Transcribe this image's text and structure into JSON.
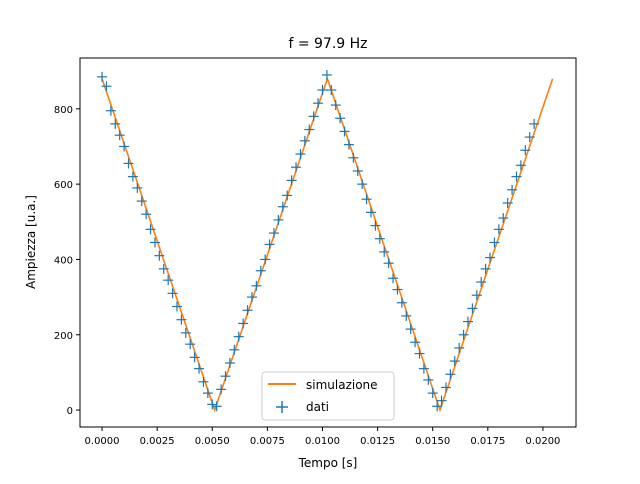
{
  "chart_data": {
    "type": "line",
    "title": "f = 97.9 Hz",
    "xlabel": "Tempo [s]",
    "ylabel": "Ampiezza [u.a.]",
    "xlim": [
      -0.001,
      0.0215
    ],
    "ylim": [
      -45,
      935
    ],
    "xticks": [
      0.0,
      0.0025,
      0.005,
      0.0075,
      0.01,
      0.0125,
      0.015,
      0.0175,
      0.02
    ],
    "xtick_labels": [
      "0.0000",
      "0.0025",
      "0.0050",
      "0.0075",
      "0.0100",
      "0.0125",
      "0.0150",
      "0.0175",
      "0.0200"
    ],
    "yticks": [
      0,
      200,
      400,
      600,
      800
    ],
    "ytick_labels": [
      "0",
      "200",
      "400",
      "600",
      "800"
    ],
    "grid": false,
    "legend_position": "lower-center",
    "series": [
      {
        "name": "simulazione",
        "kind": "line",
        "color": "#ff7f0e",
        "x": [
          0.0,
          0.00511,
          0.01022,
          0.01533,
          0.02044
        ],
        "y": [
          880,
          0,
          880,
          0,
          880
        ]
      },
      {
        "name": "dati",
        "kind": "scatter",
        "marker": "+",
        "color": "#1f77b4",
        "x": [
          0.0,
          0.0002,
          0.0004,
          0.0006,
          0.0008,
          0.001,
          0.0012,
          0.0014,
          0.0016,
          0.0018,
          0.002,
          0.0022,
          0.0024,
          0.0026,
          0.0028,
          0.003,
          0.0032,
          0.0034,
          0.0036,
          0.0038,
          0.004,
          0.0042,
          0.0044,
          0.0046,
          0.0048,
          0.005,
          0.0052,
          0.0054,
          0.0056,
          0.0058,
          0.006,
          0.0062,
          0.0064,
          0.0066,
          0.0068,
          0.007,
          0.0072,
          0.0074,
          0.0076,
          0.0078,
          0.008,
          0.0082,
          0.0084,
          0.0086,
          0.0088,
          0.009,
          0.0092,
          0.0094,
          0.0096,
          0.0098,
          0.01,
          0.0102,
          0.0104,
          0.0106,
          0.0108,
          0.011,
          0.0112,
          0.0114,
          0.0116,
          0.0118,
          0.012,
          0.0122,
          0.0124,
          0.0126,
          0.0128,
          0.013,
          0.0132,
          0.0134,
          0.0136,
          0.0138,
          0.014,
          0.0142,
          0.0144,
          0.0146,
          0.0148,
          0.015,
          0.0152,
          0.0154,
          0.0156,
          0.0158,
          0.016,
          0.0162,
          0.0164,
          0.0166,
          0.0168,
          0.017,
          0.0172,
          0.0174,
          0.0176,
          0.0178,
          0.018,
          0.0182,
          0.0184,
          0.0186,
          0.0188,
          0.019,
          0.0192,
          0.0194,
          0.0196
        ],
        "y": [
          885,
          860,
          795,
          760,
          730,
          700,
          655,
          620,
          590,
          555,
          520,
          480,
          445,
          410,
          375,
          345,
          310,
          275,
          240,
          205,
          175,
          140,
          110,
          75,
          45,
          15,
          10,
          55,
          90,
          125,
          160,
          195,
          230,
          265,
          300,
          330,
          370,
          400,
          440,
          470,
          505,
          540,
          570,
          610,
          645,
          680,
          715,
          745,
          780,
          815,
          850,
          890,
          850,
          810,
          775,
          740,
          705,
          670,
          635,
          600,
          560,
          525,
          490,
          455,
          420,
          390,
          350,
          320,
          285,
          250,
          215,
          180,
          150,
          110,
          80,
          45,
          10,
          25,
          60,
          95,
          130,
          165,
          200,
          235,
          270,
          305,
          340,
          375,
          405,
          445,
          480,
          510,
          550,
          585,
          620,
          650,
          690,
          725,
          760
        ]
      }
    ]
  }
}
